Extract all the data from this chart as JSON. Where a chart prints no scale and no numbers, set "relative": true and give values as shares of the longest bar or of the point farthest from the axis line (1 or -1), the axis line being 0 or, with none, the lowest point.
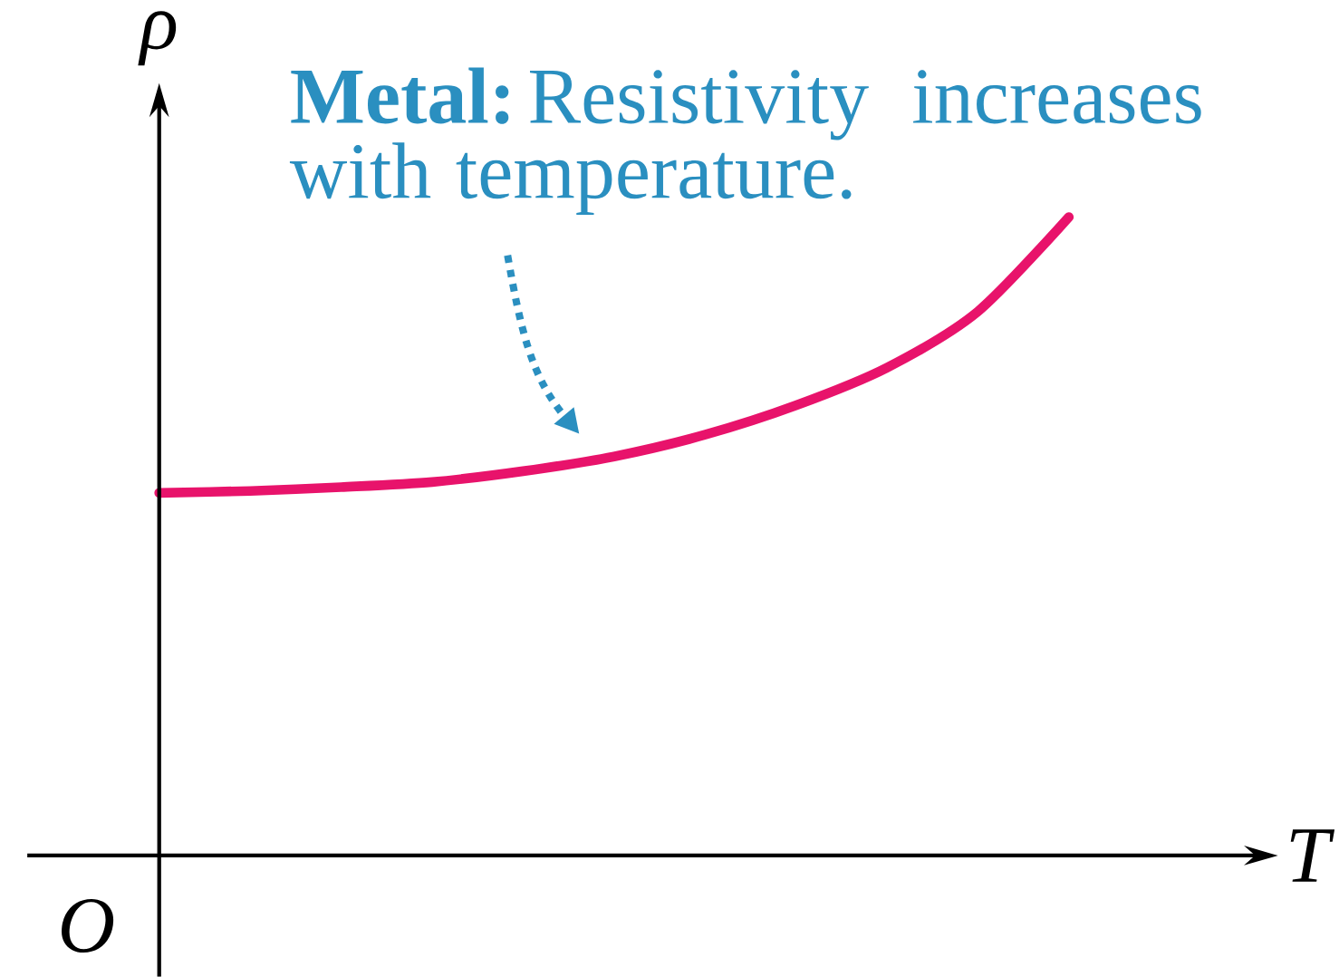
{
  "chart_data": {
    "type": "line",
    "relative": true,
    "xlabel": "T",
    "ylabel": "ρ",
    "categories": [
      null,
      null,
      null,
      null,
      null,
      null,
      null,
      null,
      null,
      null,
      null
    ],
    "series": [
      {
        "color": "#e8136b",
        "values": [
          0.568,
          0.571,
          0.577,
          0.585,
          0.602,
          0.625,
          0.659,
          0.705,
          0.764,
          0.852,
          1
        ]
      }
    ],
    "annotations": [
      "**Metal:** Resistivity increases with temperature.",
      "O"
    ],
    "marker": "none",
    "line_style": "solid"
  }
}
